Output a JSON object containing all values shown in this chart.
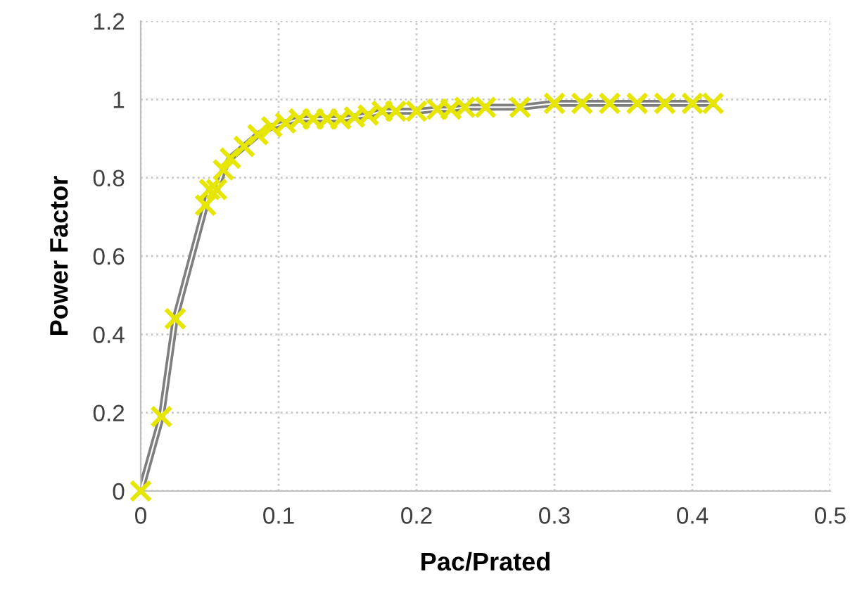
{
  "chart_data": {
    "type": "line",
    "xlabel": "Pac/Prated",
    "ylabel": "Power Factor",
    "x": [
      0,
      0.015,
      0.025,
      0.047,
      0.05,
      0.055,
      0.06,
      0.065,
      0.075,
      0.085,
      0.095,
      0.105,
      0.115,
      0.125,
      0.135,
      0.145,
      0.155,
      0.165,
      0.175,
      0.185,
      0.2,
      0.215,
      0.225,
      0.235,
      0.25,
      0.275,
      0.3,
      0.32,
      0.34,
      0.36,
      0.38,
      0.4,
      0.415
    ],
    "series": [
      {
        "color": "#7f7f7f",
        "marker": "none",
        "values": [
          0,
          0.19,
          0.44,
          0.73,
          0.77,
          0.77,
          0.82,
          0.85,
          0.88,
          0.91,
          0.93,
          0.94,
          0.95,
          0.95,
          0.95,
          0.95,
          0.955,
          0.96,
          0.97,
          0.97,
          0.97,
          0.975,
          0.975,
          0.98,
          0.98,
          0.98,
          0.99,
          0.99,
          0.99,
          0.99,
          0.99,
          0.99,
          0.99
        ]
      },
      {
        "type": "scatter",
        "color": "#e6e600",
        "marker": "cross",
        "values": [
          0,
          0.19,
          0.44,
          0.73,
          0.77,
          0.77,
          0.82,
          0.85,
          0.88,
          0.91,
          0.93,
          0.94,
          0.95,
          0.95,
          0.95,
          0.95,
          0.955,
          0.96,
          0.97,
          0.97,
          0.97,
          0.975,
          0.975,
          0.98,
          0.98,
          0.98,
          0.99,
          0.99,
          0.99,
          0.99,
          0.99,
          0.99,
          0.99
        ]
      }
    ],
    "xlim": [
      0,
      0.5
    ],
    "xticks": [
      0,
      0.1,
      0.2,
      0.3,
      0.4,
      0.5
    ],
    "ylim": [
      0,
      1.2
    ],
    "yticks": [
      0,
      0.2,
      0.4,
      0.6,
      0.8,
      1,
      1.2
    ],
    "grid": true,
    "legend": false
  }
}
